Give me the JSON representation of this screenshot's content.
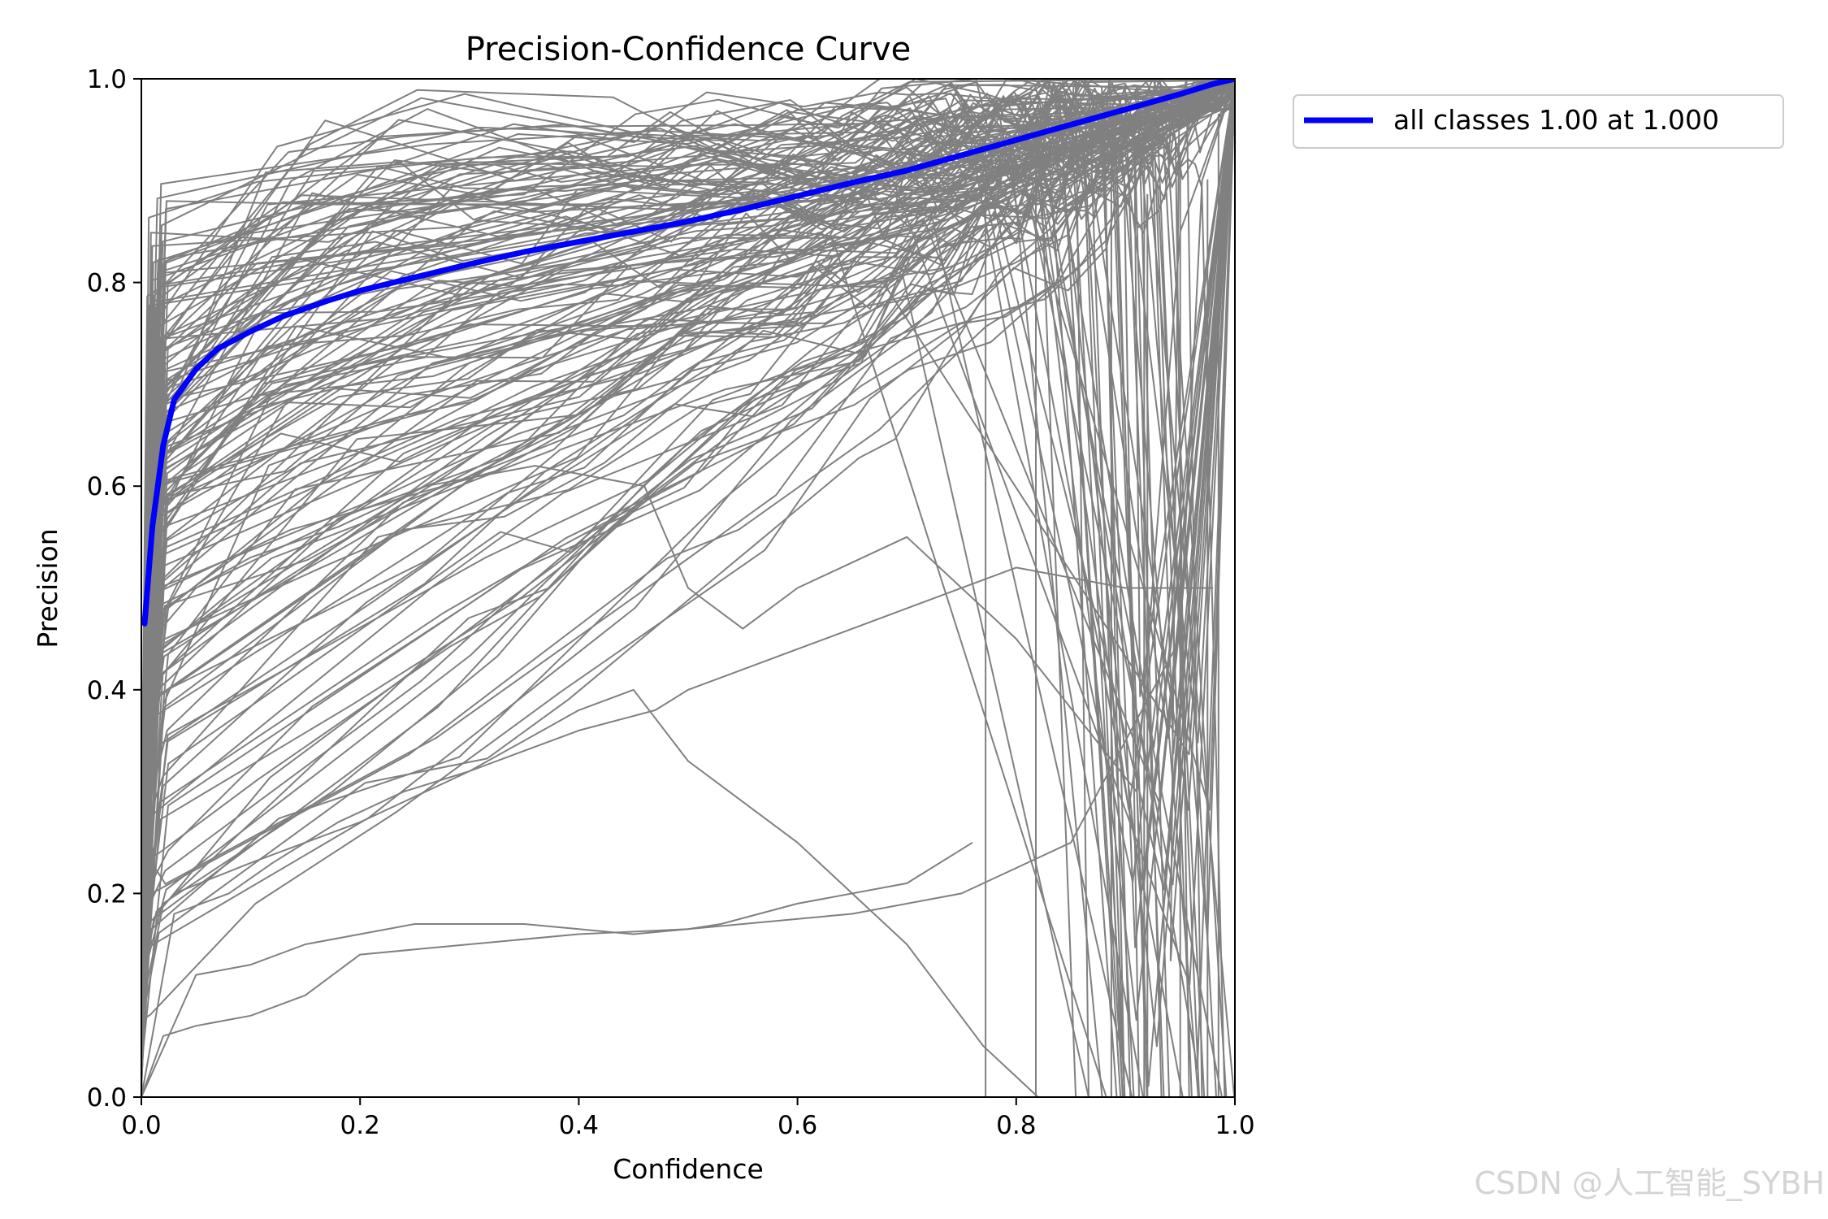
{
  "chart_data": {
    "type": "line",
    "title": "Precision-Confidence Curve",
    "xlabel": "Confidence",
    "ylabel": "Precision",
    "xlim": [
      0,
      1
    ],
    "ylim": [
      0,
      1
    ],
    "xticks": [
      0.0,
      0.2,
      0.4,
      0.6,
      0.8,
      1.0
    ],
    "xtick_labels": [
      "0.0",
      "0.2",
      "0.4",
      "0.6",
      "0.8",
      "1.0"
    ],
    "yticks": [
      0.0,
      0.2,
      0.4,
      0.6,
      0.8,
      1.0
    ],
    "ytick_labels": [
      "0.0",
      "0.2",
      "0.4",
      "0.6",
      "0.8",
      "1.0"
    ],
    "grid": false,
    "legend_position": "outside-top-right",
    "series": [
      {
        "name": "all classes 1.00 at 1.000",
        "color": "#0000ff",
        "x": [
          0.003,
          0.01,
          0.02,
          0.03,
          0.05,
          0.07,
          0.1,
          0.13,
          0.17,
          0.2,
          0.25,
          0.3,
          0.35,
          0.4,
          0.45,
          0.5,
          0.55,
          0.6,
          0.65,
          0.7,
          0.75,
          0.8,
          0.85,
          0.9,
          0.95,
          0.98,
          1.0
        ],
        "y": [
          0.465,
          0.56,
          0.64,
          0.685,
          0.715,
          0.735,
          0.752,
          0.767,
          0.782,
          0.792,
          0.805,
          0.818,
          0.83,
          0.84,
          0.85,
          0.86,
          0.872,
          0.885,
          0.898,
          0.91,
          0.925,
          0.94,
          0.955,
          0.97,
          0.985,
          0.995,
          1.0
        ]
      },
      {
        "name": "per-class curves",
        "color": "#808080",
        "count": 160,
        "lines": [
          {
            "x": [
              0.0,
              0.05,
              0.1,
              0.15,
              0.2,
              0.25,
              0.35,
              0.45,
              0.55,
              0.65,
              0.75,
              0.85,
              0.95,
              0.97,
              1.0
            ],
            "y": [
              0.0,
              0.12,
              0.13,
              0.15,
              0.16,
              0.17,
              0.17,
              0.16,
              0.17,
              0.18,
              0.2,
              0.25,
              0.45,
              0.9,
              1.0
            ]
          },
          {
            "x": [
              0.0,
              0.02,
              0.05,
              0.1,
              0.15,
              0.2,
              0.3,
              0.4,
              0.5,
              0.53,
              0.6,
              0.7,
              0.76
            ],
            "y": [
              0.0,
              0.06,
              0.07,
              0.08,
              0.1,
              0.14,
              0.15,
              0.16,
              0.165,
              0.17,
              0.19,
              0.21,
              0.25
            ]
          },
          {
            "x": [
              0.0,
              0.03,
              0.08,
              0.12,
              0.18,
              0.24,
              0.3,
              0.4,
              0.47,
              0.5,
              0.6,
              0.7,
              0.8,
              0.9,
              0.98
            ],
            "y": [
              0.0,
              0.18,
              0.2,
              0.23,
              0.27,
              0.3,
              0.32,
              0.36,
              0.38,
              0.4,
              0.44,
              0.48,
              0.52,
              0.5,
              0.5
            ]
          },
          {
            "x": [
              0.03,
              0.1,
              0.2,
              0.3,
              0.4,
              0.45,
              0.5,
              0.6,
              0.7,
              0.77,
              0.8,
              0.82
            ],
            "y": [
              0.2,
              0.23,
              0.27,
              0.32,
              0.38,
              0.4,
              0.33,
              0.25,
              0.15,
              0.05,
              0.02,
              0.0
            ]
          },
          {
            "x": [
              0.01,
              0.05,
              0.1,
              0.18,
              0.26,
              0.36,
              0.46,
              0.5,
              0.55,
              0.6,
              0.7,
              0.8,
              0.91,
              0.95,
              1.0
            ],
            "y": [
              0.45,
              0.5,
              0.53,
              0.56,
              0.6,
              0.62,
              0.6,
              0.5,
              0.46,
              0.5,
              0.55,
              0.45,
              0.3,
              0.85,
              1.0
            ]
          }
        ]
      }
    ]
  },
  "watermark": "CSDN @人工智能_SYBH"
}
